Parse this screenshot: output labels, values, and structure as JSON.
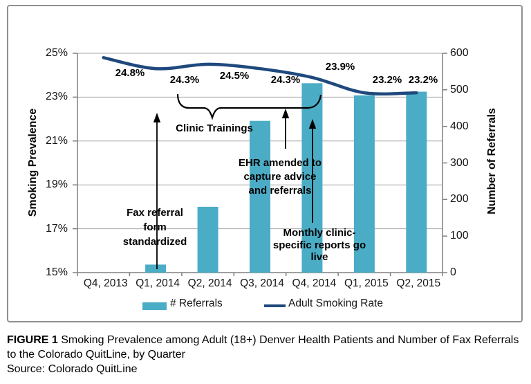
{
  "chart_data": {
    "type": "bar+line combo",
    "categories": [
      "Q4, 2013",
      "Q1, 2014",
      "Q2, 2014",
      "Q3, 2014",
      "Q4, 2014",
      "Q1, 2015",
      "Q2, 2015"
    ],
    "series": [
      {
        "name": "# Referrals",
        "type": "bar",
        "axis": "right",
        "values": [
          0,
          22,
          180,
          415,
          518,
          485,
          495
        ],
        "color": "#4BACC6"
      },
      {
        "name": "Adult Smoking Rate",
        "type": "line",
        "axis": "left",
        "values": [
          24.8,
          24.3,
          24.5,
          24.3,
          23.9,
          23.2,
          23.2
        ],
        "point_labels": [
          "24.8%",
          "24.3%",
          "24.5%",
          "24.3%",
          "23.9%",
          "23.2%",
          "23.2%"
        ],
        "color": "#1F497D"
      }
    ],
    "left_axis": {
      "title": "Smoking Prevalence",
      "min": 15,
      "max": 25,
      "tick_labels": [
        "25%",
        "23%",
        "21%",
        "19%",
        "17%",
        "15%"
      ]
    },
    "right_axis": {
      "title": "Number of Referrals",
      "min": 0,
      "max": 600,
      "tick_labels": [
        "600",
        "500",
        "400",
        "300",
        "200",
        "100",
        "0"
      ]
    },
    "grid": "horizontal",
    "legend_position": "bottom",
    "annotations": [
      {
        "id": "fax",
        "text": "Fax referral\nform\nstandardized"
      },
      {
        "id": "clinic",
        "text": "Clinic Trainings"
      },
      {
        "id": "ehr",
        "text": "EHR amended to\ncapture advice\nand referrals"
      },
      {
        "id": "monthly",
        "text": "Monthly clinic-\nspecific reports go\nlive"
      }
    ]
  },
  "legend": {
    "bar_label": "# Referrals",
    "line_label": "Adult Smoking Rate"
  },
  "caption": {
    "figure_tag": "FIGURE 1",
    "title_rest": " Smoking Prevalence among Adult (18+) Denver Health Patients and Number of Fax Referrals to the Colorado QuitLine, by Quarter",
    "source": "Source: Colorado QuitLine"
  },
  "colors": {
    "bar": "#4BACC6",
    "line": "#1F497D",
    "grid": "#A6A6A6",
    "axis": "#808080",
    "frame": "#8F8F8F"
  }
}
